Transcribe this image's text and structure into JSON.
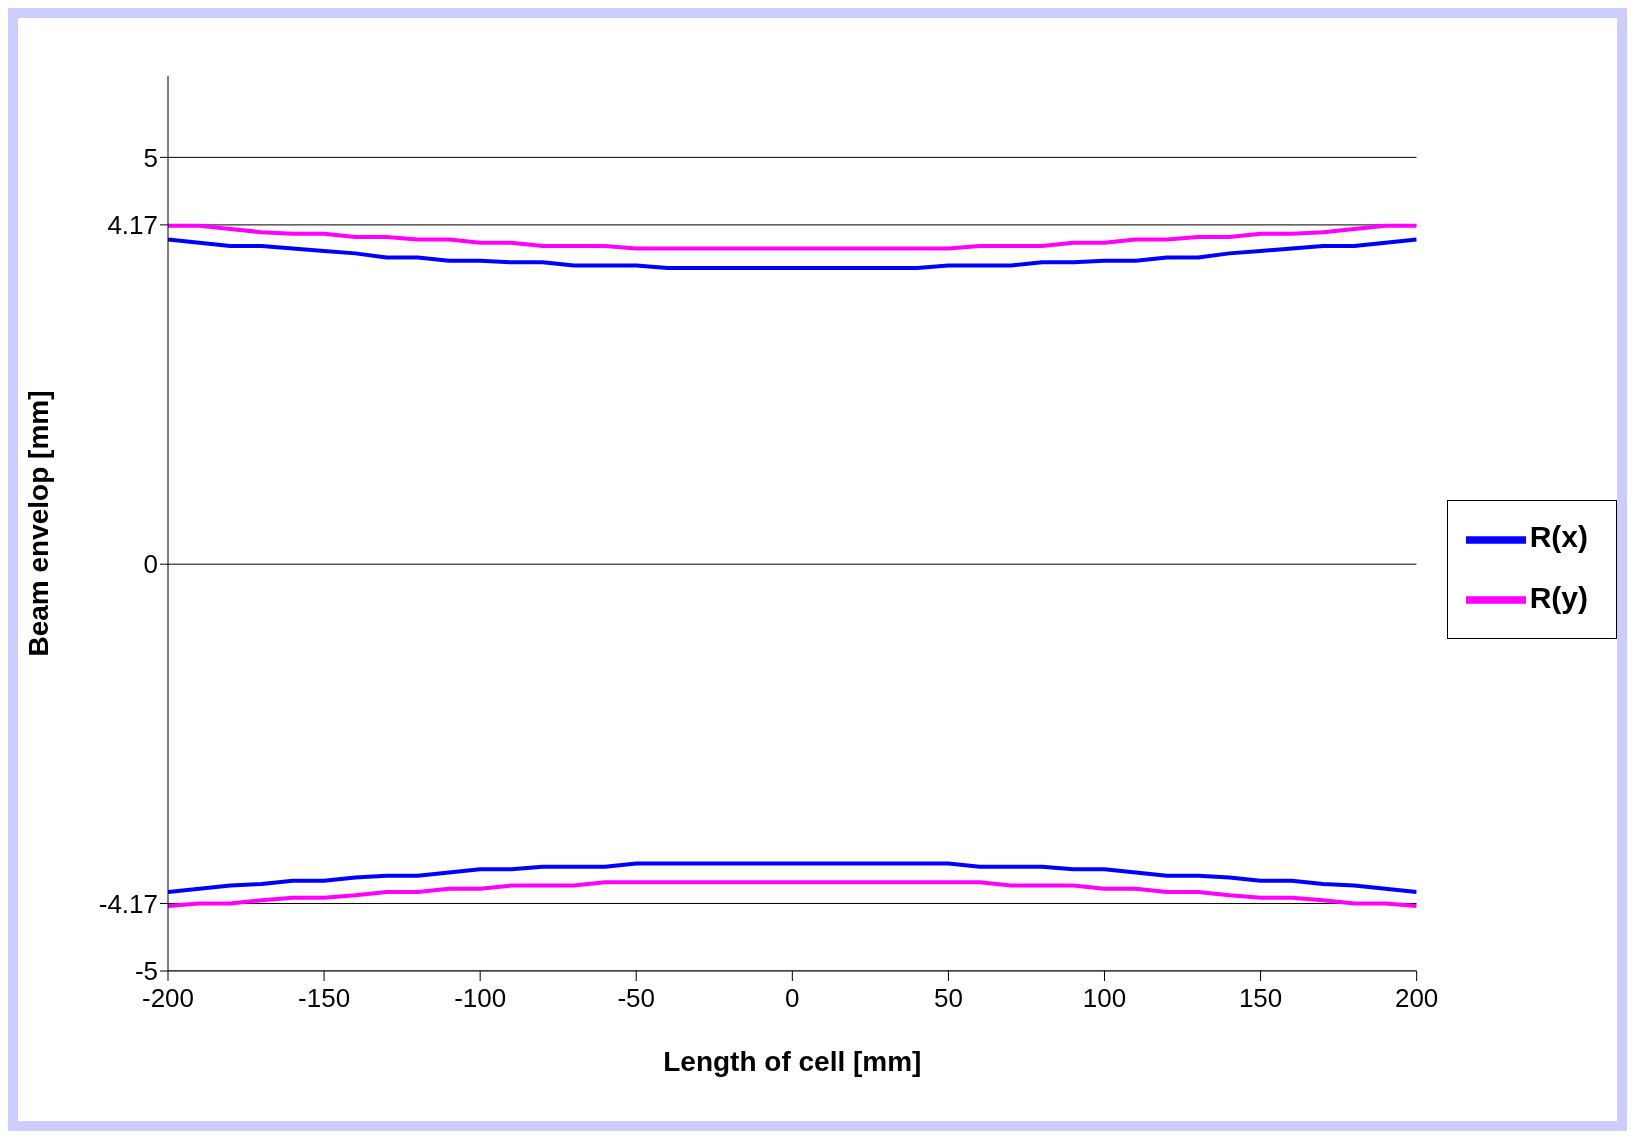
{
  "chart_data": {
    "type": "line",
    "xlabel": "Length of cell    [mm]",
    "ylabel": "Beam envelop   [mm]",
    "x": [
      -200,
      -190,
      -180,
      -170,
      -160,
      -150,
      -140,
      -130,
      -120,
      -110,
      -100,
      -90,
      -80,
      -70,
      -60,
      -50,
      -40,
      -30,
      -20,
      -10,
      0,
      10,
      20,
      30,
      40,
      50,
      60,
      70,
      80,
      90,
      100,
      110,
      120,
      130,
      140,
      150,
      160,
      170,
      180,
      190,
      200
    ],
    "xlim": [
      -200,
      200
    ],
    "xticks": [
      -200,
      -150,
      -100,
      -50,
      0,
      50,
      100,
      150,
      200
    ],
    "ylim": [
      -5,
      6
    ],
    "yticks": [
      -5,
      -4.17,
      0,
      4.17,
      5
    ],
    "grid": "y",
    "legend": "right",
    "series": [
      {
        "name": "R(x)",
        "color": "#0000ff",
        "values": [
          3.99,
          3.95,
          3.91,
          3.91,
          3.88,
          3.85,
          3.82,
          3.77,
          3.77,
          3.73,
          3.73,
          3.71,
          3.71,
          3.67,
          3.67,
          3.67,
          3.64,
          3.64,
          3.64,
          3.64,
          3.64,
          3.64,
          3.64,
          3.64,
          3.64,
          3.67,
          3.67,
          3.67,
          3.71,
          3.71,
          3.73,
          3.73,
          3.77,
          3.77,
          3.82,
          3.85,
          3.88,
          3.91,
          3.91,
          3.95,
          3.99
        ]
      },
      {
        "name": "R(y)",
        "color": "#ff00ff",
        "values": [
          4.16,
          4.16,
          4.12,
          4.08,
          4.06,
          4.06,
          4.02,
          4.02,
          3.99,
          3.99,
          3.95,
          3.95,
          3.91,
          3.91,
          3.91,
          3.88,
          3.88,
          3.88,
          3.88,
          3.88,
          3.88,
          3.88,
          3.88,
          3.88,
          3.88,
          3.88,
          3.91,
          3.91,
          3.91,
          3.95,
          3.95,
          3.99,
          3.99,
          4.02,
          4.02,
          4.06,
          4.06,
          4.08,
          4.12,
          4.16,
          4.16
        ]
      },
      {
        "color": "#0000ff",
        "values": [
          -4.03,
          -3.99,
          -3.95,
          -3.93,
          -3.89,
          -3.89,
          -3.85,
          -3.83,
          -3.83,
          -3.79,
          -3.75,
          -3.75,
          -3.72,
          -3.72,
          -3.72,
          -3.68,
          -3.68,
          -3.68,
          -3.68,
          -3.68,
          -3.68,
          -3.68,
          -3.68,
          -3.68,
          -3.68,
          -3.68,
          -3.72,
          -3.72,
          -3.72,
          -3.75,
          -3.75,
          -3.79,
          -3.83,
          -3.83,
          -3.85,
          -3.89,
          -3.89,
          -3.93,
          -3.95,
          -3.99,
          -4.03
        ]
      },
      {
        "color": "#ff00ff",
        "values": [
          -4.2,
          -4.17,
          -4.17,
          -4.13,
          -4.1,
          -4.1,
          -4.07,
          -4.03,
          -4.03,
          -3.99,
          -3.99,
          -3.95,
          -3.95,
          -3.95,
          -3.91,
          -3.91,
          -3.91,
          -3.91,
          -3.91,
          -3.91,
          -3.91,
          -3.91,
          -3.91,
          -3.91,
          -3.91,
          -3.91,
          -3.91,
          -3.95,
          -3.95,
          -3.95,
          -3.99,
          -3.99,
          -4.03,
          -4.03,
          -4.07,
          -4.1,
          -4.1,
          -4.13,
          -4.17,
          -4.17,
          -4.2
        ]
      }
    ]
  }
}
